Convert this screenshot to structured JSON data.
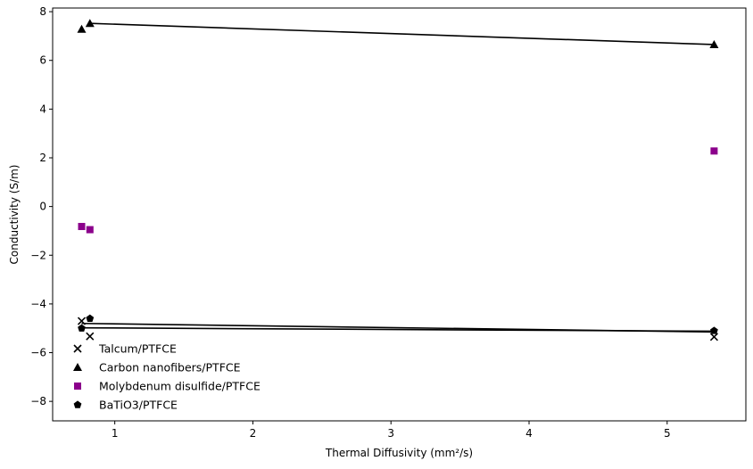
{
  "chart_data": {
    "type": "scatter",
    "title": "",
    "xlabel": "Thermal Diffusivity (mm²/s)",
    "ylabel": "Conductivity (S/m)",
    "xlim": [
      0.55,
      5.57
    ],
    "ylim": [
      -8.8,
      8.15
    ],
    "xticks": [
      1,
      2,
      3,
      4,
      5
    ],
    "yticks": [
      -8,
      -6,
      -4,
      -2,
      0,
      2,
      4,
      6,
      8
    ],
    "grid": false,
    "legend_position": "lower-left",
    "series": [
      {
        "name": "Talcum/PTFCE",
        "marker": "x",
        "color": "#000000",
        "fit_line": true,
        "points": [
          [
            0.76,
            -4.7
          ],
          [
            0.82,
            -5.33
          ],
          [
            5.34,
            -5.35
          ]
        ],
        "line": [
          [
            0.76,
            -4.8
          ],
          [
            5.34,
            -5.15
          ]
        ]
      },
      {
        "name": "Carbon nanofibers/PTFCE",
        "marker": "triangle",
        "color": "#000000",
        "fit_line": true,
        "points": [
          [
            0.76,
            7.28
          ],
          [
            0.82,
            7.52
          ],
          [
            5.34,
            6.65
          ]
        ],
        "line": [
          [
            0.82,
            7.52
          ],
          [
            5.34,
            6.65
          ]
        ]
      },
      {
        "name": "Molybdenum disulfide/PTFCE",
        "marker": "square",
        "color": "#8b008b",
        "fit_line": false,
        "points": [
          [
            0.76,
            -0.82
          ],
          [
            0.82,
            -0.95
          ],
          [
            5.34,
            2.28
          ]
        ]
      },
      {
        "name": "BaTiO3/PTFCE",
        "marker": "pentagon",
        "color": "#000000",
        "fit_line": true,
        "points": [
          [
            0.76,
            -5.0
          ],
          [
            0.82,
            -4.6
          ],
          [
            5.34,
            -5.1
          ]
        ],
        "line": [
          [
            0.76,
            -4.98
          ],
          [
            5.34,
            -5.12
          ]
        ]
      }
    ]
  }
}
